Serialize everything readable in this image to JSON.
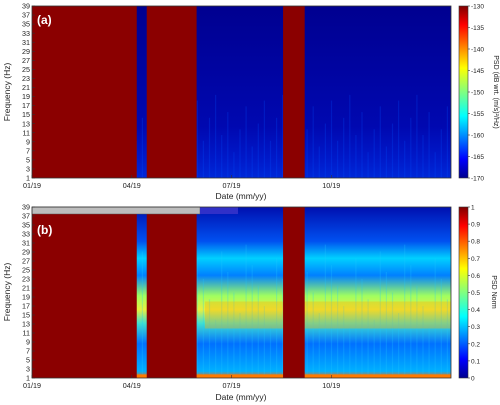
{
  "chart_data": [
    {
      "type": "heatmap",
      "panel_label": "(a)",
      "xlabel": "Date (mm/yy)",
      "ylabel": "Frequency (Hz)",
      "x_ticks": [
        "01/19",
        "04/19",
        "07/19",
        "10/19"
      ],
      "y_ticks": [
        1,
        3,
        5,
        7,
        9,
        11,
        13,
        15,
        17,
        19,
        21,
        23,
        25,
        27,
        29,
        31,
        33,
        35,
        37,
        39
      ],
      "ylim": [
        1,
        39
      ],
      "colorbar": {
        "label": "PSD (dB wrt. (m/s)²/Hz)",
        "range": [
          -170,
          -130
        ],
        "ticks": [
          -130,
          -135,
          -140,
          -145,
          -150,
          -155,
          -160,
          -165,
          -170
        ]
      },
      "no_data_segments": [
        {
          "start": "01/19",
          "end": "04/19"
        },
        {
          "start": "04/19",
          "end": "05/19"
        },
        {
          "start": "08/19",
          "end": "09/19"
        }
      ]
    },
    {
      "type": "heatmap",
      "panel_label": "(b)",
      "xlabel": "Date (mm/yy)",
      "ylabel": "Frequency (Hz)",
      "x_ticks": [
        "01/19",
        "04/19",
        "07/19",
        "10/19"
      ],
      "y_ticks": [
        1,
        3,
        5,
        7,
        9,
        11,
        13,
        15,
        17,
        19,
        21,
        23,
        25,
        27,
        29,
        31,
        33,
        35,
        37,
        39
      ],
      "ylim": [
        1,
        39
      ],
      "colorbar": {
        "label": "PSD Norm",
        "range": [
          0,
          1
        ],
        "ticks": [
          0,
          0.1,
          0.2,
          0.3,
          0.4,
          0.5,
          0.6,
          0.7,
          0.8,
          0.9,
          1
        ]
      },
      "no_data_segments": [
        {
          "start": "01/19",
          "end": "04/19"
        },
        {
          "start": "04/19",
          "end": "05/19"
        },
        {
          "start": "08/19",
          "end": "09/19"
        }
      ]
    }
  ],
  "colors": {
    "no_data": "#8b0000",
    "scale_low": "#00008f",
    "scale_high": "#800000"
  }
}
